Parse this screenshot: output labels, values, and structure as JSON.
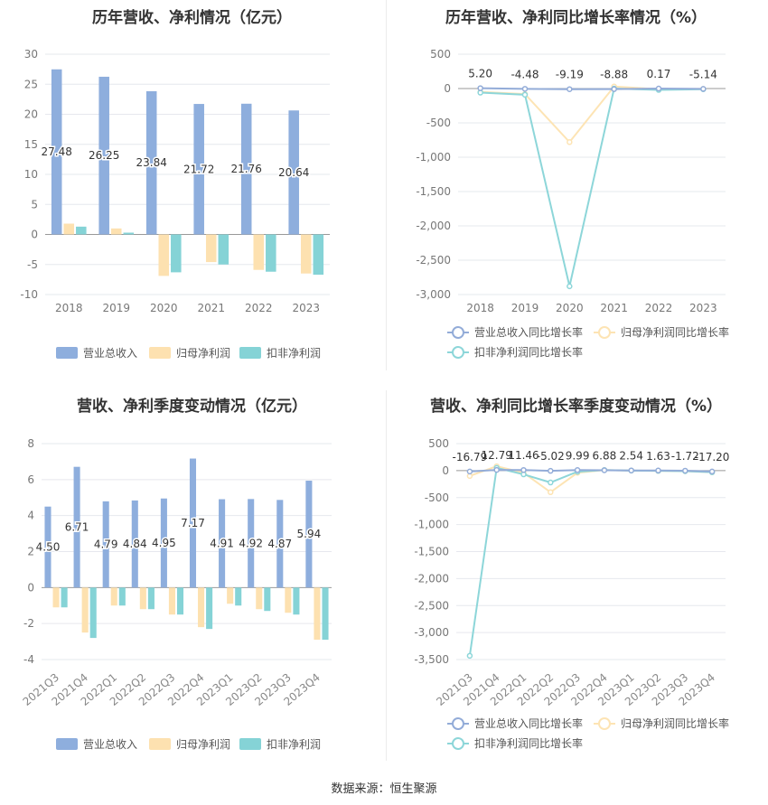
{
  "source": "数据来源：恒生聚源",
  "colors": {
    "revenue": "#8eaedd",
    "parent_profit": "#fde1b0",
    "deducted_profit": "#85d3d6",
    "rev_growth": "#93acd8",
    "parent_growth": "#fde4b4",
    "deducted_growth": "#8dd6d9"
  },
  "chart_data": [
    {
      "type": "bar",
      "title": "历年营收、净利情况（亿元）",
      "categories": [
        "2018",
        "2019",
        "2020",
        "2021",
        "2022",
        "2023"
      ],
      "ylim": [
        -10,
        30
      ],
      "yticks": [
        "30",
        "25",
        "20",
        "15",
        "10",
        "5",
        "0",
        "-5",
        "-10"
      ],
      "series": [
        {
          "name": "营业总收入",
          "values": [
            27.48,
            26.25,
            23.84,
            21.72,
            21.76,
            20.64
          ],
          "labels": [
            "27.48",
            "26.25",
            "23.84",
            "21.72",
            "21.76",
            "20.64"
          ]
        },
        {
          "name": "归母净利润",
          "values": [
            1.8,
            1.0,
            -6.9,
            -4.6,
            -5.9,
            -6.5
          ]
        },
        {
          "name": "扣非净利润",
          "values": [
            1.3,
            0.3,
            -6.3,
            -5.0,
            -6.2,
            -6.7
          ]
        }
      ],
      "legend": "bottom",
      "grid": true
    },
    {
      "type": "line",
      "title": "历年营收、净利同比增长率情况（%）",
      "categories": [
        "2018",
        "2019",
        "2020",
        "2021",
        "2022",
        "2023"
      ],
      "ylim": [
        -3000,
        500
      ],
      "yticks": [
        "500",
        "0",
        "-500",
        "-1,000",
        "-1,500",
        "-2,000",
        "-2,500",
        "-3,000"
      ],
      "series": [
        {
          "name": "营业总收入同比增长率",
          "values": [
            5.2,
            -4.48,
            -9.19,
            -8.88,
            0.17,
            -5.14
          ],
          "labels": [
            "5.20",
            "-4.48",
            "-9.19",
            "-8.88",
            "0.17",
            "-5.14"
          ]
        },
        {
          "name": "归母净利润同比增长率",
          "values": [
            -50,
            -80,
            -780,
            30,
            -10,
            -5
          ]
        },
        {
          "name": "扣非净利润同比增长率",
          "values": [
            -60,
            -90,
            -2880,
            0,
            -20,
            -10
          ]
        }
      ],
      "legend": "bottom",
      "grid": true
    },
    {
      "type": "bar",
      "title": "营收、净利季度变动情况（亿元）",
      "categories": [
        "2021Q3",
        "2021Q4",
        "2022Q1",
        "2022Q2",
        "2022Q3",
        "2022Q4",
        "2023Q1",
        "2023Q2",
        "2023Q3",
        "2023Q4"
      ],
      "ylim": [
        -4,
        8
      ],
      "yticks": [
        "8",
        "6",
        "4",
        "2",
        "0",
        "-2",
        "-4"
      ],
      "series": [
        {
          "name": "营业总收入",
          "values": [
            4.5,
            6.71,
            4.79,
            4.84,
            4.95,
            7.17,
            4.91,
            4.92,
            4.87,
            5.94
          ],
          "labels": [
            "4.50",
            "6.71",
            "4.79",
            "4.84",
            "4.95",
            "7.17",
            "4.91",
            "4.92",
            "4.87",
            "5.94"
          ]
        },
        {
          "name": "归母净利润",
          "values": [
            -1.1,
            -2.5,
            -1.0,
            -1.2,
            -1.5,
            -2.2,
            -0.9,
            -1.2,
            -1.4,
            -2.9
          ]
        },
        {
          "name": "扣非净利润",
          "values": [
            -1.1,
            -2.8,
            -1.0,
            -1.2,
            -1.5,
            -2.3,
            -1.0,
            -1.3,
            -1.5,
            -2.9
          ]
        }
      ],
      "legend": "bottom",
      "grid": true
    },
    {
      "type": "line",
      "title": "营收、净利同比增长率季度变动情况（%）",
      "categories": [
        "2021Q3",
        "2021Q4",
        "2022Q1",
        "2022Q2",
        "2022Q3",
        "2022Q4",
        "2023Q1",
        "2023Q2",
        "2023Q3",
        "2023Q4"
      ],
      "ylim": [
        -3500,
        500
      ],
      "yticks": [
        "500",
        "0",
        "-500",
        "-1,000",
        "-1,500",
        "-2,000",
        "-2,500",
        "-3,000",
        "-3,500"
      ],
      "series": [
        {
          "name": "营业总收入同比增长率",
          "values": [
            -16.79,
            12.79,
            11.46,
            -5.02,
            9.99,
            6.88,
            2.54,
            1.63,
            -1.72,
            -17.2
          ],
          "labels": [
            "-16.79",
            "12.79",
            "11.46",
            "-5.02",
            "9.99",
            "6.88",
            "2.54",
            "1.63",
            "-1.72",
            "-17.20"
          ]
        },
        {
          "name": "归母净利润同比增长率",
          "values": [
            -100,
            80,
            -40,
            -400,
            -40,
            10,
            0,
            -5,
            -10,
            -30
          ]
        },
        {
          "name": "扣非净利润同比增长率",
          "values": [
            -3430,
            50,
            -70,
            -220,
            -20,
            10,
            0,
            -5,
            -10,
            -30
          ]
        }
      ],
      "legend": "bottom",
      "grid": true
    }
  ]
}
